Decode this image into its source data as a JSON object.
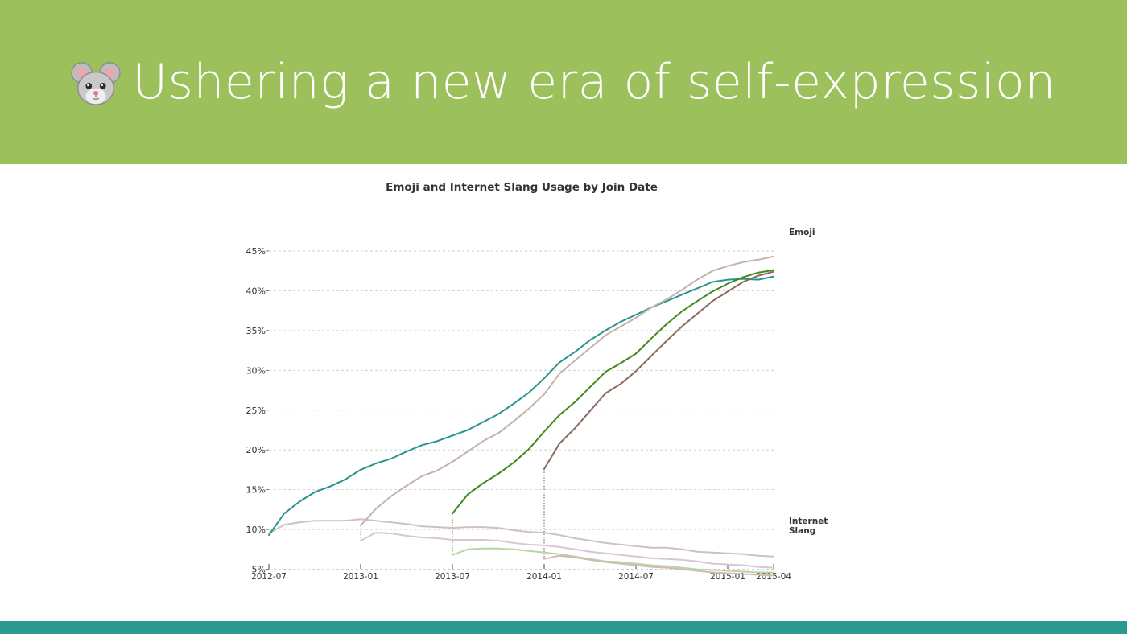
{
  "slide": {
    "title": "Ushering a new era of self-expression",
    "title_icon": "mouse-face-icon",
    "colors": {
      "header": "#9cc05c",
      "footer": "#2a9a8f",
      "title_text": "#ffffff"
    }
  },
  "chart_data": {
    "type": "line",
    "title": "Emoji and Internet Slang Usage by Join Date",
    "xlabel": "",
    "ylabel": "",
    "ylim": [
      0,
      45
    ],
    "yticks": [
      5,
      10,
      15,
      20,
      25,
      30,
      35,
      40,
      45
    ],
    "ytick_labels": [
      "5%",
      "10%",
      "15%",
      "20%",
      "25%",
      "30%",
      "35%",
      "40%",
      "45%"
    ],
    "xlim": [
      "2012-07",
      "2015-04"
    ],
    "xticks": [
      "2012-07",
      "2013-01",
      "2013-07",
      "2014-01",
      "2014-07",
      "2015-01",
      "2015-04"
    ],
    "grid": true,
    "group_labels": [
      "Emoji",
      "Internet\nSlang"
    ],
    "cohort_markers": [
      "2013-01",
      "2013-07",
      "2014-01"
    ],
    "series": [
      {
        "group": "Emoji",
        "color": "#26958d",
        "start": "2012-07",
        "points": [
          [
            "2012-07",
            9.3
          ],
          [
            "2012-08",
            12.0
          ],
          [
            "2012-09",
            13.5
          ],
          [
            "2012-10",
            14.7
          ],
          [
            "2012-11",
            15.4
          ],
          [
            "2012-12",
            16.3
          ],
          [
            "2013-01",
            17.5
          ],
          [
            "2013-02",
            18.3
          ],
          [
            "2013-03",
            18.9
          ],
          [
            "2013-04",
            19.8
          ],
          [
            "2013-05",
            20.6
          ],
          [
            "2013-06",
            21.1
          ],
          [
            "2013-07",
            21.8
          ],
          [
            "2013-08",
            22.5
          ],
          [
            "2013-09",
            23.5
          ],
          [
            "2013-10",
            24.5
          ],
          [
            "2013-11",
            25.8
          ],
          [
            "2013-12",
            27.2
          ],
          [
            "2014-01",
            29.0
          ],
          [
            "2014-02",
            31.0
          ],
          [
            "2014-03",
            32.3
          ],
          [
            "2014-04",
            33.8
          ],
          [
            "2014-05",
            35.0
          ],
          [
            "2014-06",
            36.1
          ],
          [
            "2014-07",
            37.0
          ],
          [
            "2014-08",
            37.9
          ],
          [
            "2014-09",
            38.7
          ],
          [
            "2014-10",
            39.5
          ],
          [
            "2014-11",
            40.3
          ],
          [
            "2014-12",
            41.1
          ],
          [
            "2015-01",
            41.4
          ],
          [
            "2015-02",
            41.5
          ],
          [
            "2015-03",
            41.4
          ],
          [
            "2015-04",
            41.8
          ]
        ]
      },
      {
        "group": "Emoji",
        "color": "#c4b1ab",
        "start": "2013-01",
        "points": [
          [
            "2013-01",
            10.5
          ],
          [
            "2013-02",
            12.6
          ],
          [
            "2013-03",
            14.2
          ],
          [
            "2013-04",
            15.5
          ],
          [
            "2013-05",
            16.7
          ],
          [
            "2013-06",
            17.4
          ],
          [
            "2013-07",
            18.5
          ],
          [
            "2013-08",
            19.8
          ],
          [
            "2013-09",
            21.1
          ],
          [
            "2013-10",
            22.1
          ],
          [
            "2013-11",
            23.6
          ],
          [
            "2013-12",
            25.2
          ],
          [
            "2014-01",
            27.0
          ],
          [
            "2014-02",
            29.6
          ],
          [
            "2014-03",
            31.2
          ],
          [
            "2014-04",
            32.8
          ],
          [
            "2014-05",
            34.4
          ],
          [
            "2014-06",
            35.5
          ],
          [
            "2014-07",
            36.6
          ],
          [
            "2014-08",
            37.9
          ],
          [
            "2014-09",
            38.9
          ],
          [
            "2014-10",
            40.1
          ],
          [
            "2014-11",
            41.4
          ],
          [
            "2014-12",
            42.5
          ],
          [
            "2015-01",
            43.1
          ],
          [
            "2015-02",
            43.6
          ],
          [
            "2015-03",
            43.9
          ],
          [
            "2015-04",
            44.3
          ]
        ]
      },
      {
        "group": "Emoji",
        "color": "#3f8a1c",
        "start": "2013-07",
        "points": [
          [
            "2013-07",
            12.0
          ],
          [
            "2013-08",
            14.4
          ],
          [
            "2013-09",
            15.8
          ],
          [
            "2013-10",
            17.0
          ],
          [
            "2013-11",
            18.4
          ],
          [
            "2013-12",
            20.1
          ],
          [
            "2014-01",
            22.3
          ],
          [
            "2014-02",
            24.4
          ],
          [
            "2014-03",
            26.0
          ],
          [
            "2014-04",
            27.9
          ],
          [
            "2014-05",
            29.8
          ],
          [
            "2014-06",
            30.9
          ],
          [
            "2014-07",
            32.1
          ],
          [
            "2014-08",
            34.0
          ],
          [
            "2014-09",
            35.8
          ],
          [
            "2014-10",
            37.4
          ],
          [
            "2014-11",
            38.7
          ],
          [
            "2014-12",
            39.9
          ],
          [
            "2015-01",
            40.9
          ],
          [
            "2015-02",
            41.7
          ],
          [
            "2015-03",
            42.3
          ],
          [
            "2015-04",
            42.6
          ]
        ]
      },
      {
        "group": "Emoji",
        "color": "#8a6a5e",
        "start": "2014-01",
        "points": [
          [
            "2014-01",
            17.6
          ],
          [
            "2014-02",
            20.8
          ],
          [
            "2014-03",
            22.7
          ],
          [
            "2014-04",
            24.9
          ],
          [
            "2014-05",
            27.1
          ],
          [
            "2014-06",
            28.3
          ],
          [
            "2014-07",
            29.9
          ],
          [
            "2014-08",
            31.8
          ],
          [
            "2014-09",
            33.7
          ],
          [
            "2014-10",
            35.5
          ],
          [
            "2014-11",
            37.1
          ],
          [
            "2014-12",
            38.7
          ],
          [
            "2015-01",
            39.9
          ],
          [
            "2015-02",
            41.1
          ],
          [
            "2015-03",
            41.9
          ],
          [
            "2015-04",
            42.4
          ]
        ]
      },
      {
        "group": "Internet Slang",
        "color": "#cfc0c8",
        "start": "2012-07",
        "points": [
          [
            "2012-07",
            9.5
          ],
          [
            "2012-08",
            10.6
          ],
          [
            "2012-09",
            10.9
          ],
          [
            "2012-10",
            11.1
          ],
          [
            "2012-11",
            11.1
          ],
          [
            "2012-12",
            11.1
          ],
          [
            "2013-01",
            11.3
          ],
          [
            "2013-02",
            11.1
          ],
          [
            "2013-03",
            10.9
          ],
          [
            "2013-04",
            10.7
          ],
          [
            "2013-05",
            10.4
          ],
          [
            "2013-06",
            10.3
          ],
          [
            "2013-07",
            10.2
          ],
          [
            "2013-08",
            10.3
          ],
          [
            "2013-09",
            10.3
          ],
          [
            "2013-10",
            10.2
          ],
          [
            "2013-11",
            9.9
          ],
          [
            "2013-12",
            9.7
          ],
          [
            "2014-01",
            9.6
          ],
          [
            "2014-02",
            9.3
          ],
          [
            "2014-03",
            8.9
          ],
          [
            "2014-04",
            8.6
          ],
          [
            "2014-05",
            8.3
          ],
          [
            "2014-06",
            8.1
          ],
          [
            "2014-07",
            7.9
          ],
          [
            "2014-08",
            7.7
          ],
          [
            "2014-09",
            7.7
          ],
          [
            "2014-10",
            7.5
          ],
          [
            "2014-11",
            7.2
          ],
          [
            "2014-12",
            7.1
          ],
          [
            "2015-01",
            7.0
          ],
          [
            "2015-02",
            6.9
          ],
          [
            "2015-03",
            6.7
          ],
          [
            "2015-04",
            6.6
          ]
        ]
      },
      {
        "group": "Internet Slang",
        "color": "#d8c7d2",
        "start": "2013-01",
        "points": [
          [
            "2013-01",
            8.6
          ],
          [
            "2013-02",
            9.6
          ],
          [
            "2013-03",
            9.5
          ],
          [
            "2013-04",
            9.2
          ],
          [
            "2013-05",
            9.0
          ],
          [
            "2013-06",
            8.9
          ],
          [
            "2013-07",
            8.7
          ],
          [
            "2013-08",
            8.7
          ],
          [
            "2013-09",
            8.7
          ],
          [
            "2013-10",
            8.6
          ],
          [
            "2013-11",
            8.3
          ],
          [
            "2013-12",
            8.1
          ],
          [
            "2014-01",
            8.0
          ],
          [
            "2014-02",
            7.8
          ],
          [
            "2014-03",
            7.5
          ],
          [
            "2014-04",
            7.2
          ],
          [
            "2014-05",
            7.0
          ],
          [
            "2014-06",
            6.8
          ],
          [
            "2014-07",
            6.6
          ],
          [
            "2014-08",
            6.4
          ],
          [
            "2014-09",
            6.3
          ],
          [
            "2014-10",
            6.2
          ],
          [
            "2014-11",
            6.0
          ],
          [
            "2014-12",
            5.7
          ],
          [
            "2015-01",
            5.6
          ],
          [
            "2015-02",
            5.5
          ],
          [
            "2015-03",
            5.3
          ],
          [
            "2015-04",
            5.2
          ]
        ]
      },
      {
        "group": "Internet Slang",
        "color": "#b8d6a2",
        "start": "2013-07",
        "points": [
          [
            "2013-07",
            6.8
          ],
          [
            "2013-08",
            7.5
          ],
          [
            "2013-09",
            7.6
          ],
          [
            "2013-10",
            7.6
          ],
          [
            "2013-11",
            7.5
          ],
          [
            "2013-12",
            7.3
          ],
          [
            "2014-01",
            7.1
          ],
          [
            "2014-02",
            6.9
          ],
          [
            "2014-03",
            6.6
          ],
          [
            "2014-04",
            6.3
          ],
          [
            "2014-05",
            6.0
          ],
          [
            "2014-06",
            5.9
          ],
          [
            "2014-07",
            5.7
          ],
          [
            "2014-08",
            5.5
          ],
          [
            "2014-09",
            5.4
          ],
          [
            "2014-10",
            5.2
          ],
          [
            "2014-11",
            5.0
          ],
          [
            "2014-12",
            4.9
          ],
          [
            "2015-01",
            4.8
          ],
          [
            "2015-02",
            4.7
          ],
          [
            "2015-03",
            4.6
          ],
          [
            "2015-04",
            4.6
          ]
        ]
      },
      {
        "group": "Internet Slang",
        "color": "#d3b8b8",
        "start": "2014-01",
        "points": [
          [
            "2014-01",
            6.3
          ],
          [
            "2014-02",
            6.7
          ],
          [
            "2014-03",
            6.5
          ],
          [
            "2014-04",
            6.2
          ],
          [
            "2014-05",
            5.9
          ],
          [
            "2014-06",
            5.7
          ],
          [
            "2014-07",
            5.5
          ],
          [
            "2014-08",
            5.3
          ],
          [
            "2014-09",
            5.2
          ],
          [
            "2014-10",
            5.0
          ],
          [
            "2014-11",
            4.8
          ],
          [
            "2014-12",
            4.6
          ],
          [
            "2015-01",
            4.5
          ],
          [
            "2015-02",
            4.4
          ],
          [
            "2015-03",
            4.3
          ],
          [
            "2015-04",
            4.2
          ]
        ]
      }
    ]
  }
}
